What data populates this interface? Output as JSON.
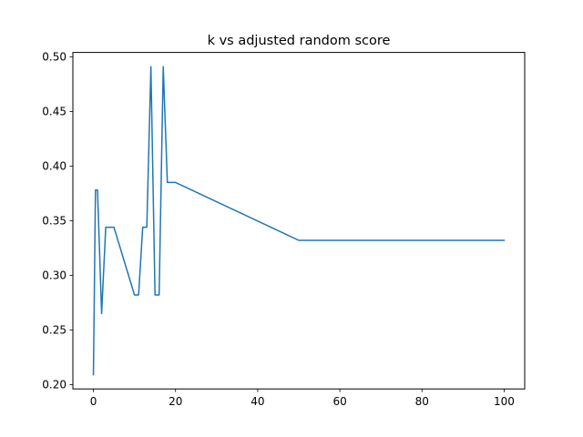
{
  "chart_data": {
    "type": "line",
    "title": "k vs adjusted random score",
    "xlabel": "",
    "ylabel": "",
    "xlim": [
      -5,
      105
    ],
    "ylim": [
      0.196,
      0.504
    ],
    "grid": false,
    "x_ticks": [
      0,
      20,
      40,
      60,
      80,
      100
    ],
    "y_ticks": [
      0.2,
      0.25,
      0.3,
      0.35,
      0.4,
      0.45,
      0.5
    ],
    "x_tick_labels": [
      "0",
      "20",
      "40",
      "60",
      "80",
      "100"
    ],
    "y_tick_labels": [
      "0.20",
      "0.25",
      "0.30",
      "0.35",
      "0.40",
      "0.45",
      "0.50"
    ],
    "series": [
      {
        "color": "#1f77b4",
        "x": [
          0,
          0.5,
          1,
          2,
          3,
          4,
          5,
          10,
          11,
          12,
          13,
          14,
          15,
          16,
          17,
          18,
          19,
          20,
          50,
          100
        ],
        "y": [
          0.209,
          0.378,
          0.378,
          0.265,
          0.344,
          0.344,
          0.344,
          0.282,
          0.282,
          0.344,
          0.344,
          0.491,
          0.282,
          0.282,
          0.491,
          0.385,
          0.385,
          0.385,
          0.332,
          0.332
        ]
      }
    ]
  }
}
